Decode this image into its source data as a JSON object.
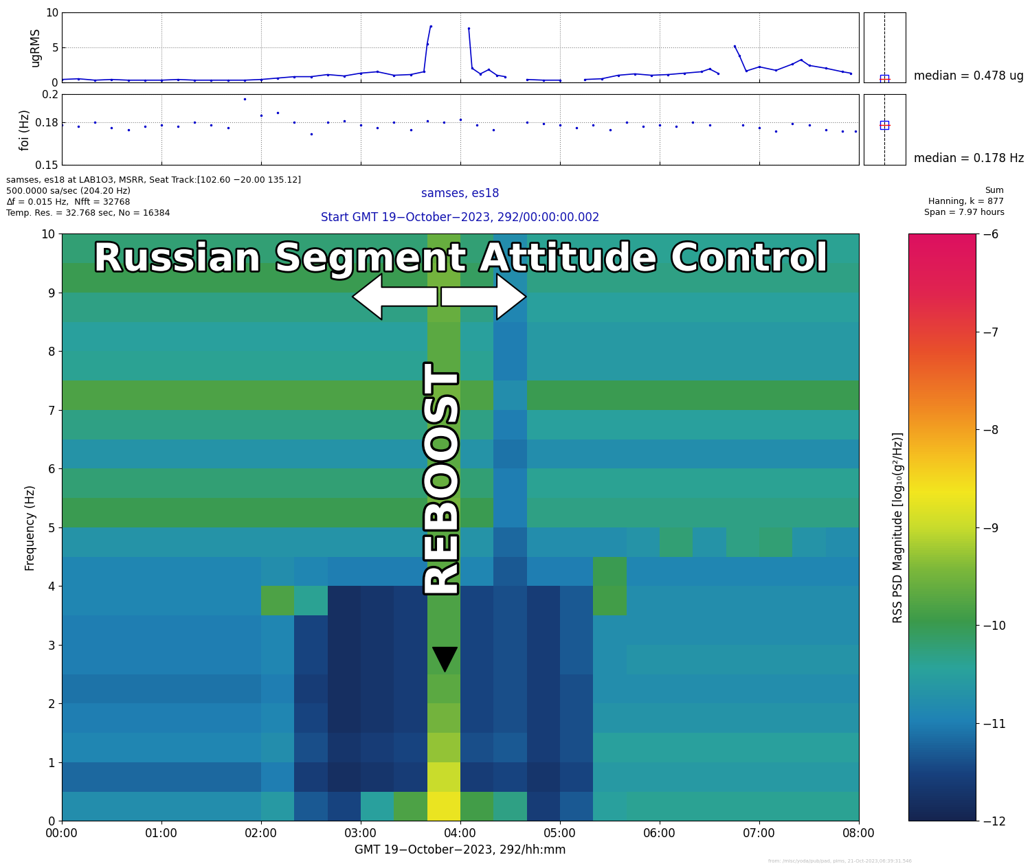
{
  "header": {
    "left": [
      "samses, es18 at LAB1O3, MSRR, Seat Track:[102.60 −20.00 135.12]",
      "500.0000 sa/sec (204.20 Hz)",
      "∆f = 0.015 Hz,  Nfft = 32768",
      "Temp. Res. = 32.768 sec, No = 16384"
    ],
    "center": [
      "samses, es18",
      "Start GMT 19−October−2023, 292/00:00:00.002"
    ],
    "right": [
      "Sum",
      "Hanning, k = 877",
      "Span = 7.97 hours"
    ]
  },
  "footer": "from: /misc/yoda/pub/pad, pims, 21-Oct-2023,06:39:31.546",
  "chart_data": [
    {
      "type": "line",
      "y_label": "ugRMS",
      "color": "#0000cc",
      "marker": "dot",
      "line_style": "solid",
      "grid": true,
      "tick_labels": "y",
      "xlim": [
        0,
        480
      ],
      "xticks": [
        0,
        60,
        120,
        180,
        240,
        300,
        360,
        420,
        480
      ],
      "ylim": [
        0,
        10
      ],
      "yticks": [
        0,
        5,
        10
      ],
      "median": 0.478,
      "median_label": "median = 0.478 ug",
      "x": [
        0,
        10,
        20,
        30,
        40,
        50,
        60,
        70,
        80,
        90,
        100,
        110,
        120,
        130,
        140,
        150,
        160,
        170,
        180,
        190,
        200,
        210,
        218,
        220,
        222,
        224,
        245,
        247,
        252,
        257,
        262,
        267,
        270,
        280,
        290,
        300,
        305,
        315,
        325,
        335,
        345,
        355,
        365,
        375,
        385,
        390,
        395,
        398,
        405,
        408,
        412,
        420,
        430,
        440,
        445,
        450,
        460,
        470,
        475
      ],
      "values": [
        0.4,
        0.5,
        0.3,
        0.4,
        0.3,
        0.3,
        0.3,
        0.4,
        0.3,
        0.3,
        0.3,
        0.3,
        0.4,
        0.6,
        0.8,
        0.8,
        1.1,
        0.9,
        1.3,
        1.5,
        1.0,
        1.1,
        1.5,
        5.5,
        8.0,
        null,
        7.7,
        2.0,
        1.2,
        1.8,
        1.0,
        0.8,
        null,
        0.4,
        0.3,
        0.3,
        null,
        0.4,
        0.5,
        1.0,
        1.2,
        1.0,
        1.1,
        1.3,
        1.5,
        1.9,
        1.3,
        null,
        5.2,
        3.8,
        1.6,
        2.2,
        1.7,
        2.6,
        3.2,
        2.4,
        2.0,
        1.5,
        1.3
      ]
    },
    {
      "type": "scatter",
      "y_label": "foi (Hz)",
      "color": "#0000cc",
      "marker": "dot",
      "line_style": "none",
      "grid": true,
      "tick_labels": "y",
      "xlim": [
        0,
        480
      ],
      "xticks": [
        0,
        60,
        120,
        180,
        240,
        300,
        360,
        420,
        480
      ],
      "ylim": [
        0.15,
        0.2
      ],
      "yticks": [
        0.15,
        0.18,
        0.2
      ],
      "median": 0.178,
      "median_label": "median = 0.178 Hz",
      "x": [
        0,
        10,
        20,
        30,
        40,
        50,
        60,
        70,
        80,
        90,
        100,
        110,
        120,
        130,
        140,
        150,
        160,
        170,
        180,
        190,
        200,
        210,
        220,
        230,
        240,
        250,
        260,
        270,
        280,
        290,
        300,
        310,
        320,
        330,
        340,
        350,
        360,
        370,
        380,
        390,
        400,
        410,
        420,
        430,
        440,
        450,
        460,
        470,
        478
      ],
      "values": [
        0.178,
        0.177,
        0.18,
        0.176,
        0.175,
        0.177,
        0.178,
        0.177,
        0.18,
        0.178,
        0.176,
        0.197,
        0.185,
        0.187,
        0.18,
        0.172,
        0.18,
        0.181,
        0.178,
        0.176,
        0.18,
        0.175,
        0.181,
        0.18,
        0.182,
        0.178,
        0.175,
        null,
        0.18,
        0.179,
        0.178,
        0.176,
        0.178,
        0.175,
        0.18,
        0.177,
        0.178,
        0.177,
        0.18,
        0.178,
        null,
        0.178,
        0.176,
        0.174,
        0.179,
        0.178,
        0.175,
        0.174,
        0.174
      ]
    },
    {
      "type": "heatmap",
      "x_label": "GMT 19−October−2023, 292/hh:mm",
      "y_label": "Frequency (Hz)",
      "annotations": [
        "Russian Segment Attitude Control",
        "REBOOST"
      ],
      "xlim": [
        0,
        480
      ],
      "xticks": [
        {
          "value": 0,
          "label": "00:00"
        },
        {
          "value": 60,
          "label": "01:00"
        },
        {
          "value": 120,
          "label": "02:00"
        },
        {
          "value": 180,
          "label": "03:00"
        },
        {
          "value": 240,
          "label": "04:00"
        },
        {
          "value": 300,
          "label": "05:00"
        },
        {
          "value": 360,
          "label": "06:00"
        },
        {
          "value": 420,
          "label": "07:00"
        },
        {
          "value": 480,
          "label": "08:00"
        }
      ],
      "ylim": [
        0,
        10
      ],
      "yticks": [
        0,
        1,
        2,
        3,
        4,
        5,
        6,
        7,
        8,
        9,
        10
      ],
      "x_bins": [
        0,
        20,
        40,
        60,
        80,
        100,
        120,
        140,
        160,
        180,
        200,
        220,
        240,
        260,
        280,
        300,
        320,
        340,
        360,
        380,
        400,
        420,
        440,
        460,
        480
      ],
      "y_bins": [
        0,
        0.5,
        1,
        1.5,
        2,
        2.5,
        3,
        3.5,
        4,
        4.5,
        5,
        5.5,
        6,
        6.5,
        7,
        7.5,
        8,
        8.5,
        9,
        9.5,
        10
      ],
      "cells": [
        [
          -10.8,
          -10.8,
          -10.8,
          -10.8,
          -10.8,
          -10.8,
          -10.6,
          -11.3,
          -11.5,
          -10.5,
          -9.8,
          -8.7,
          -9.9,
          -10.3,
          -11.6,
          -11.3,
          -10.5,
          -10.4,
          -10.4,
          -10.4,
          -10.4,
          -10.4,
          -10.4,
          -10.4
        ],
        [
          -11.2,
          -11.2,
          -11.2,
          -11.2,
          -11.2,
          -11.2,
          -11.0,
          -11.6,
          -11.8,
          -11.7,
          -11.6,
          -9.0,
          -11.6,
          -11.5,
          -11.7,
          -11.5,
          -10.6,
          -10.6,
          -10.6,
          -10.6,
          -10.6,
          -10.6,
          -10.6,
          -10.6
        ],
        [
          -10.9,
          -10.9,
          -10.9,
          -10.9,
          -10.9,
          -10.9,
          -10.8,
          -11.4,
          -11.7,
          -11.6,
          -11.5,
          -9.3,
          -11.4,
          -11.3,
          -11.6,
          -11.4,
          -10.5,
          -10.5,
          -10.5,
          -10.5,
          -10.5,
          -10.5,
          -10.5,
          -10.5
        ],
        [
          -11.0,
          -11.0,
          -11.0,
          -11.0,
          -11.0,
          -11.0,
          -10.9,
          -11.5,
          -11.8,
          -11.7,
          -11.6,
          -9.5,
          -11.5,
          -11.4,
          -11.6,
          -11.4,
          -10.7,
          -10.7,
          -10.7,
          -10.7,
          -10.7,
          -10.7,
          -10.7,
          -10.7
        ],
        [
          -11.1,
          -11.1,
          -11.1,
          -11.1,
          -11.1,
          -11.1,
          -11.0,
          -11.6,
          -11.8,
          -11.7,
          -11.6,
          -9.7,
          -11.5,
          -11.4,
          -11.6,
          -11.4,
          -10.8,
          -10.8,
          -10.8,
          -10.8,
          -10.8,
          -10.8,
          -10.8,
          -10.8
        ],
        [
          -11.0,
          -11.0,
          -11.0,
          -11.0,
          -11.0,
          -11.0,
          -10.9,
          -11.5,
          -11.8,
          -11.7,
          -11.6,
          -9.8,
          -11.5,
          -11.4,
          -11.6,
          -11.3,
          -10.8,
          -10.7,
          -10.7,
          -10.7,
          -10.7,
          -10.7,
          -10.7,
          -10.7
        ],
        [
          -11.0,
          -11.0,
          -11.0,
          -11.0,
          -11.0,
          -11.0,
          -10.9,
          -11.5,
          -11.8,
          -11.7,
          -11.6,
          -9.8,
          -11.5,
          -11.4,
          -11.6,
          -11.3,
          -10.8,
          -10.8,
          -10.8,
          -10.8,
          -10.8,
          -10.8,
          -10.8,
          -10.8
        ],
        [
          -10.9,
          -10.9,
          -10.9,
          -10.9,
          -10.9,
          -10.9,
          -9.8,
          -10.4,
          -11.8,
          -11.7,
          -11.6,
          -9.8,
          -11.5,
          -11.4,
          -11.6,
          -11.3,
          -9.9,
          -10.8,
          -10.8,
          -10.8,
          -10.8,
          -10.8,
          -10.8,
          -10.8
        ],
        [
          -10.9,
          -10.9,
          -10.9,
          -10.9,
          -10.9,
          -10.9,
          -10.8,
          -10.9,
          -11.0,
          -11.0,
          -11.0,
          -9.7,
          -10.9,
          -11.3,
          -11.0,
          -11.0,
          -10.0,
          -10.9,
          -10.9,
          -10.9,
          -10.9,
          -10.9,
          -10.9,
          -10.9
        ],
        [
          -10.7,
          -10.7,
          -10.7,
          -10.7,
          -10.7,
          -10.7,
          -10.7,
          -10.7,
          -10.7,
          -10.7,
          -10.7,
          -9.7,
          -10.7,
          -11.2,
          -10.8,
          -10.8,
          -10.8,
          -10.7,
          -10.2,
          -10.7,
          -10.3,
          -10.2,
          -10.7,
          -10.8
        ],
        [
          -10.0,
          -10.0,
          -10.0,
          -10.0,
          -10.0,
          -10.0,
          -10.0,
          -10.0,
          -10.0,
          -10.0,
          -10.0,
          -9.5,
          -10.0,
          -11.0,
          -10.3,
          -10.3,
          -10.3,
          -10.3,
          -10.3,
          -10.3,
          -10.3,
          -10.3,
          -10.3,
          -10.3
        ],
        [
          -10.2,
          -10.2,
          -10.2,
          -10.2,
          -10.2,
          -10.2,
          -10.2,
          -10.2,
          -10.2,
          -10.2,
          -10.2,
          -9.6,
          -10.2,
          -11.0,
          -10.4,
          -10.4,
          -10.4,
          -10.4,
          -10.4,
          -10.4,
          -10.4,
          -10.4,
          -10.4,
          -10.4
        ],
        [
          -10.7,
          -10.7,
          -10.7,
          -10.7,
          -10.7,
          -10.7,
          -10.7,
          -10.7,
          -10.7,
          -10.7,
          -10.7,
          -9.7,
          -10.7,
          -11.1,
          -10.8,
          -10.8,
          -10.8,
          -10.8,
          -10.8,
          -10.8,
          -10.8,
          -10.8,
          -10.8,
          -10.8
        ],
        [
          -10.3,
          -10.3,
          -10.3,
          -10.3,
          -10.3,
          -10.3,
          -10.3,
          -10.3,
          -10.3,
          -10.3,
          -10.3,
          -9.6,
          -10.3,
          -11.0,
          -10.5,
          -10.5,
          -10.5,
          -10.5,
          -10.5,
          -10.5,
          -10.5,
          -10.5,
          -10.5,
          -10.5
        ],
        [
          -9.8,
          -9.8,
          -9.8,
          -9.8,
          -9.8,
          -9.8,
          -9.8,
          -9.8,
          -9.8,
          -9.8,
          -9.8,
          -9.5,
          -9.8,
          -10.8,
          -10.0,
          -10.0,
          -10.0,
          -10.0,
          -10.0,
          -10.0,
          -10.0,
          -10.0,
          -10.0,
          -10.0
        ],
        [
          -10.4,
          -10.4,
          -10.4,
          -10.4,
          -10.4,
          -10.4,
          -10.4,
          -10.4,
          -10.4,
          -10.4,
          -10.4,
          -9.7,
          -10.4,
          -11.0,
          -10.6,
          -10.6,
          -10.6,
          -10.6,
          -10.6,
          -10.6,
          -10.6,
          -10.6,
          -10.6,
          -10.6
        ],
        [
          -10.5,
          -10.5,
          -10.5,
          -10.5,
          -10.5,
          -10.5,
          -10.5,
          -10.5,
          -10.5,
          -10.5,
          -10.5,
          -9.7,
          -10.5,
          -11.0,
          -10.6,
          -10.6,
          -10.6,
          -10.6,
          -10.6,
          -10.6,
          -10.6,
          -10.6,
          -10.6,
          -10.6
        ],
        [
          -10.3,
          -10.3,
          -10.3,
          -10.3,
          -10.3,
          -10.3,
          -10.3,
          -10.3,
          -10.3,
          -10.3,
          -10.3,
          -9.6,
          -10.3,
          -10.9,
          -10.5,
          -10.5,
          -10.5,
          -10.5,
          -10.5,
          -10.5,
          -10.5,
          -10.5,
          -10.5,
          -10.5
        ],
        [
          -10.0,
          -10.0,
          -10.0,
          -10.0,
          -10.0,
          -10.0,
          -10.0,
          -10.0,
          -10.0,
          -10.0,
          -10.0,
          -9.5,
          -10.1,
          -10.8,
          -10.3,
          -10.3,
          -10.3,
          -10.3,
          -10.3,
          -10.3,
          -10.3,
          -10.3,
          -10.3,
          -10.3
        ],
        [
          -10.2,
          -10.2,
          -10.2,
          -10.2,
          -10.2,
          -10.2,
          -10.2,
          -10.2,
          -10.2,
          -10.2,
          -10.2,
          -9.6,
          -10.2,
          -10.8,
          -10.4,
          -10.4,
          -10.4,
          -10.4,
          -10.4,
          -10.4,
          -10.4,
          -10.4,
          -10.4,
          -10.4
        ]
      ],
      "colorbar": {
        "label": "RSS PSD Magnitude [log₁₀(g²/Hz)]",
        "range": [
          -12,
          -6
        ],
        "ticks": [
          {
            "value": -12,
            "label": "−12"
          },
          {
            "value": -11,
            "label": "−11"
          },
          {
            "value": -10,
            "label": "−10"
          },
          {
            "value": -9,
            "label": "−9"
          },
          {
            "value": -8,
            "label": "−8"
          },
          {
            "value": -7,
            "label": "−7"
          },
          {
            "value": -6,
            "label": "−6"
          }
        ]
      }
    }
  ]
}
